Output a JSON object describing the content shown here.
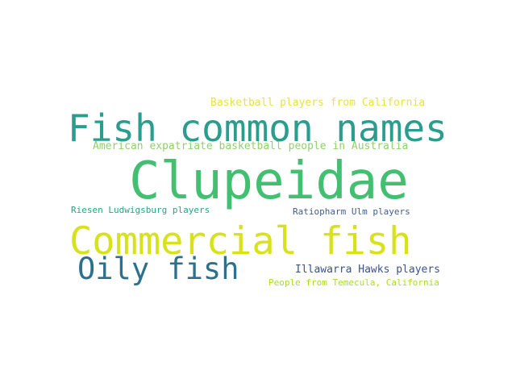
{
  "words": [
    {
      "text": "Basketball players from California",
      "color": "#e8e244"
    },
    {
      "text": "Fish common names",
      "color": "#2a9d8f"
    },
    {
      "text": "American expatriate basketball people in Australia",
      "color": "#8fd16b"
    },
    {
      "text": "Clupeidae",
      "color": "#43bf71"
    },
    {
      "text": "Riesen Ludwigsburg players",
      "color": "#25a584"
    },
    {
      "text": "Ratiopharm Ulm players",
      "color": "#3e5f8a"
    },
    {
      "text": "Commercial fish",
      "color": "#d8e21a"
    },
    {
      "text": "Oily fish",
      "color": "#2d708e"
    },
    {
      "text": "Illawarra Hawks players",
      "color": "#3b528b"
    },
    {
      "text": "People from Temecula, California",
      "color": "#a8db34"
    }
  ]
}
